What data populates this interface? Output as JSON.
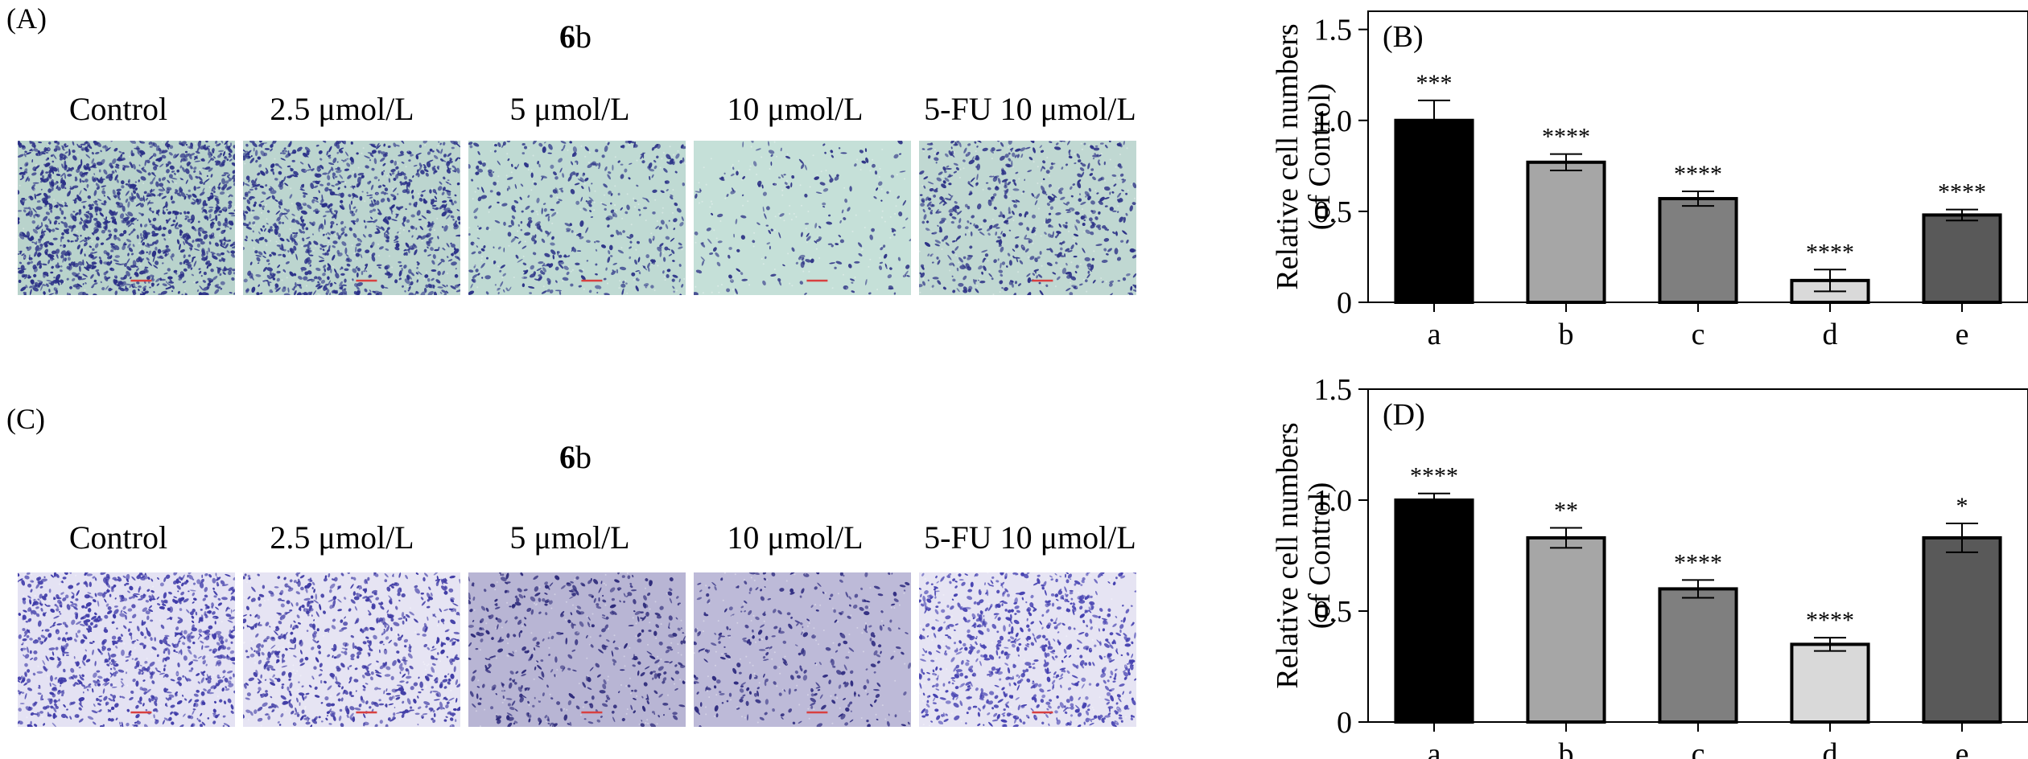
{
  "panels": {
    "A": {
      "letter": "(A)",
      "title_bold": "6",
      "title_rest": "b",
      "labels": [
        "Control",
        "2.5 μmol/L",
        "5 μmol/L",
        "10 μmol/L",
        "5-FU 10 μmol/L"
      ],
      "micrographs": [
        {
          "bg": "#b9d3cc",
          "stain": "#2a2f86",
          "density": 0.93,
          "scale_bar": "#d84040"
        },
        {
          "bg": "#bcd5cf",
          "stain": "#2a3088",
          "density": 0.68,
          "scale_bar": "#d84040"
        },
        {
          "bg": "#bfdad3",
          "stain": "#2d3488",
          "density": 0.32,
          "scale_bar": "#d84040"
        },
        {
          "bg": "#c5e0d8",
          "stain": "#2f3486",
          "density": 0.14,
          "scale_bar": "#d84040"
        },
        {
          "bg": "#c0d8d2",
          "stain": "#2c3186",
          "density": 0.4,
          "scale_bar": "#d84040"
        }
      ]
    },
    "C": {
      "letter": "(C)",
      "title_bold": "6",
      "title_rest": "b",
      "labels": [
        "Control",
        "2.5 μmol/L",
        "5 μmol/L",
        "10 μmol/L",
        "5-FU 10 μmol/L"
      ],
      "micrographs": [
        {
          "bg": "#e4e2f3",
          "stain": "#3e3aa8",
          "density": 0.66,
          "scale_bar": "#d84040"
        },
        {
          "bg": "#e6e4f3",
          "stain": "#3d39a4",
          "density": 0.52,
          "scale_bar": "#d84040"
        },
        {
          "bg": "#b8b5d4",
          "stain": "#2d2a7a",
          "density": 0.3,
          "scale_bar": "#d84040"
        },
        {
          "bg": "#bdbad8",
          "stain": "#2f2c80",
          "density": 0.22,
          "scale_bar": "#d84040"
        },
        {
          "bg": "#e6e4f3",
          "stain": "#4440b0",
          "density": 0.55,
          "scale_bar": "#d84040"
        }
      ]
    }
  },
  "chart_data": [
    {
      "type": "bar",
      "panel_label": "(B)",
      "categories": [
        "a",
        "b",
        "c",
        "d",
        "e"
      ],
      "values": [
        1.0,
        0.77,
        0.57,
        0.12,
        0.48
      ],
      "errors": [
        0.11,
        0.045,
        0.04,
        0.06,
        0.03
      ],
      "significance": [
        "***",
        "****",
        "****",
        "****",
        "****"
      ],
      "bar_colors": [
        "#000000",
        "#a6a6a6",
        "#7f7f7f",
        "#d9d9d9",
        "#595959"
      ],
      "ylabel_line1": "Relative cell numbers",
      "ylabel_line2": "(of Control)",
      "xlabel": "",
      "ylim": [
        0,
        1.6
      ],
      "yticks": [
        0,
        0.5,
        1.0,
        1.5
      ],
      "ytick_labels": [
        "0",
        "0.5",
        "1.0",
        "1.5"
      ],
      "grid": false
    },
    {
      "type": "bar",
      "panel_label": "(D)",
      "categories": [
        "a",
        "b",
        "c",
        "d",
        "e"
      ],
      "values": [
        1.0,
        0.83,
        0.6,
        0.35,
        0.83
      ],
      "errors": [
        0.03,
        0.045,
        0.04,
        0.03,
        0.065
      ],
      "significance": [
        "****",
        "**",
        "****",
        "****",
        "*"
      ],
      "bar_colors": [
        "#000000",
        "#a6a6a6",
        "#7f7f7f",
        "#d9d9d9",
        "#595959"
      ],
      "ylabel_line1": "Relative cell numbers",
      "ylabel_line2": "(of Control)",
      "xlabel": "",
      "ylim": [
        0,
        1.5
      ],
      "yticks": [
        0,
        0.5,
        1.0,
        1.5
      ],
      "ytick_labels": [
        "0",
        "0.5",
        "1.0",
        "1.5"
      ],
      "grid": false
    }
  ]
}
